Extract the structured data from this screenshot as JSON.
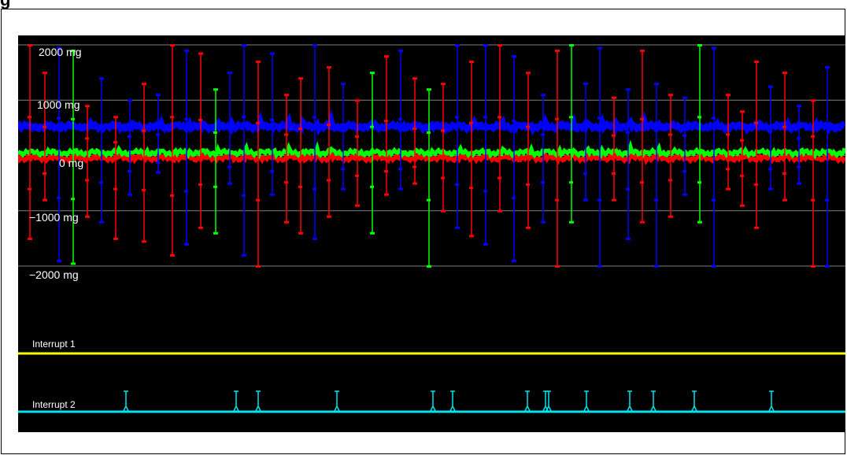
{
  "page": {
    "title_fragment": "g"
  },
  "scope": {
    "y_tick_labels": [
      "2000 mg",
      "1000 mg",
      "0 mg",
      "−1000 mg",
      "−2000 mg"
    ],
    "y_tick_values": [
      2000,
      1000,
      0,
      -1000,
      -2000
    ],
    "y_range_mg": [
      -2000,
      2000
    ],
    "background_color": "#000000",
    "grid_color": "#808080",
    "channels": [
      {
        "axis": "x",
        "color": "#ff0000",
        "baseline_mg": -50
      },
      {
        "axis": "y",
        "color": "#00ff00",
        "baseline_mg": 50
      },
      {
        "axis": "z",
        "color": "#0000ff",
        "baseline_mg": 520
      }
    ],
    "spikes": [
      {
        "c": "#ff0000",
        "hi": 2000,
        "lo": -1500
      },
      {
        "c": "#ff0000",
        "hi": 1500,
        "lo": -800
      },
      {
        "c": "#0000ff",
        "hi": 1950,
        "lo": -1900
      },
      {
        "c": "#00ff00",
        "hi": 1900,
        "lo": -1950
      },
      {
        "c": "#ff0000",
        "hi": 900,
        "lo": -1100
      },
      {
        "c": "#0000ff",
        "hi": 1400,
        "lo": -1200
      },
      {
        "c": "#ff0000",
        "hi": 700,
        "lo": -1500
      },
      {
        "c": "#0000ff",
        "hi": 1000,
        "lo": -700
      },
      {
        "c": "#ff0000",
        "hi": 1300,
        "lo": -1550
      },
      {
        "c": "#0000ff",
        "hi": 1100,
        "lo": -300
      },
      {
        "c": "#ff0000",
        "hi": 2000,
        "lo": -1800
      },
      {
        "c": "#0000ff",
        "hi": 1900,
        "lo": -1600
      },
      {
        "c": "#ff0000",
        "hi": 1850,
        "lo": -1300
      },
      {
        "c": "#00ff00",
        "hi": 1200,
        "lo": -1400
      },
      {
        "c": "#0000ff",
        "hi": 1500,
        "lo": -500
      },
      {
        "c": "#0000ff",
        "hi": 2000,
        "lo": -1800
      },
      {
        "c": "#ff0000",
        "hi": 1700,
        "lo": -2000
      },
      {
        "c": "#0000ff",
        "hi": 1850,
        "lo": -700
      },
      {
        "c": "#ff0000",
        "hi": 1100,
        "lo": -1200
      },
      {
        "c": "#ff0000",
        "hi": 1400,
        "lo": -1400
      },
      {
        "c": "#0000ff",
        "hi": 2000,
        "lo": -1500
      },
      {
        "c": "#ff0000",
        "hi": 1600,
        "lo": -1100
      },
      {
        "c": "#0000ff",
        "hi": 1300,
        "lo": -600
      },
      {
        "c": "#ff0000",
        "hi": 1000,
        "lo": -900
      },
      {
        "c": "#00ff00",
        "hi": 1500,
        "lo": -1400
      },
      {
        "c": "#ff0000",
        "hi": 1800,
        "lo": -700
      },
      {
        "c": "#0000ff",
        "hi": 1900,
        "lo": -600
      },
      {
        "c": "#ff0000",
        "hi": 1400,
        "lo": -500
      },
      {
        "c": "#00ff00",
        "hi": 1200,
        "lo": -2000
      },
      {
        "c": "#ff0000",
        "hi": 1300,
        "lo": -1000
      },
      {
        "c": "#0000ff",
        "hi": 2000,
        "lo": -1300
      },
      {
        "c": "#ff0000",
        "hi": 1700,
        "lo": -1450
      },
      {
        "c": "#0000ff",
        "hi": 2000,
        "lo": -1600
      },
      {
        "c": "#ff0000",
        "hi": 2000,
        "lo": -1000
      },
      {
        "c": "#0000ff",
        "hi": 1800,
        "lo": -1900
      },
      {
        "c": "#ff0000",
        "hi": 1500,
        "lo": -1300
      },
      {
        "c": "#0000ff",
        "hi": 1100,
        "lo": -1200
      },
      {
        "c": "#ff0000",
        "hi": 1900,
        "lo": -2000
      },
      {
        "c": "#00ff00",
        "hi": 2000,
        "lo": -1200
      },
      {
        "c": "#0000ff",
        "hi": 1300,
        "lo": -800
      },
      {
        "c": "#0000ff",
        "hi": 1950,
        "lo": -2000
      },
      {
        "c": "#ff0000",
        "hi": 1050,
        "lo": -800
      },
      {
        "c": "#0000ff",
        "hi": 1200,
        "lo": -1500
      },
      {
        "c": "#ff0000",
        "hi": 1900,
        "lo": -1200
      },
      {
        "c": "#0000ff",
        "hi": 1300,
        "lo": -2000
      },
      {
        "c": "#ff0000",
        "hi": 1100,
        "lo": -1100
      },
      {
        "c": "#0000ff",
        "hi": 1050,
        "lo": -700
      },
      {
        "c": "#00ff00",
        "hi": 2000,
        "lo": -1200
      },
      {
        "c": "#0000ff",
        "hi": 1950,
        "lo": -2000
      },
      {
        "c": "#ff0000",
        "hi": 1100,
        "lo": -600
      },
      {
        "c": "#ff0000",
        "hi": 800,
        "lo": -900
      },
      {
        "c": "#ff0000",
        "hi": 1700,
        "lo": -1300
      },
      {
        "c": "#0000ff",
        "hi": 1250,
        "lo": -600
      },
      {
        "c": "#ff0000",
        "hi": 1500,
        "lo": -800
      },
      {
        "c": "#0000ff",
        "hi": 900,
        "lo": -500
      },
      {
        "c": "#ff0000",
        "hi": 1000,
        "lo": -2000
      },
      {
        "c": "#0000ff",
        "hi": 1600,
        "lo": -2000
      }
    ],
    "interrupts": [
      {
        "label": "Interrupt 1",
        "color": "#ffff00",
        "pulse_times": []
      },
      {
        "label": "Interrupt 2",
        "color": "#00e5ee",
        "pulse_times": [
          160,
          300,
          328,
          428,
          550,
          575,
          670,
          693,
          697,
          745,
          800,
          830,
          882,
          980
        ]
      }
    ]
  }
}
